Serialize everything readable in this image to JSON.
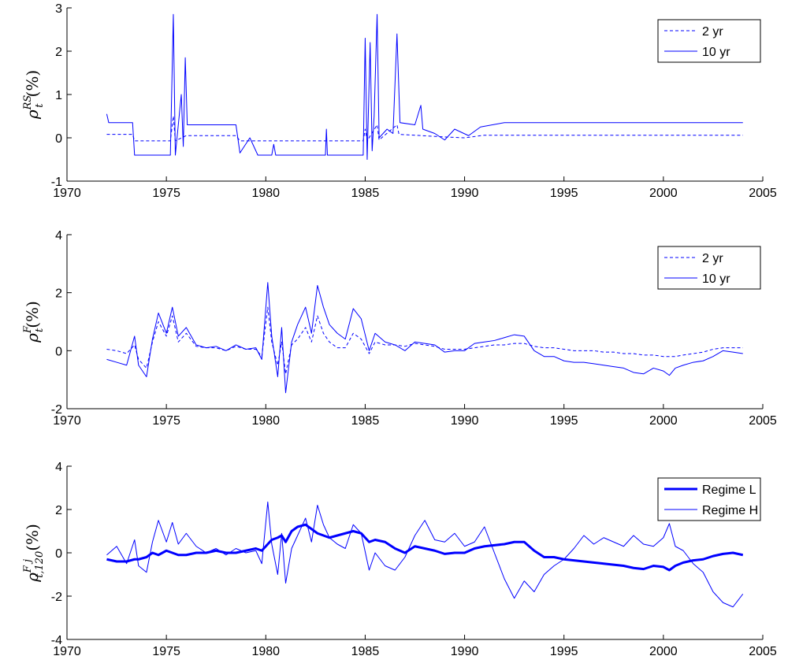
{
  "chart_data": [
    {
      "type": "line",
      "ylabel": {
        "base": "ρ",
        "sub": "t",
        "sup": "RS",
        "unit": "(%)"
      },
      "xlim": [
        1970,
        2005
      ],
      "xticks": [
        1970,
        1975,
        1980,
        1985,
        1990,
        1995,
        2000,
        2005
      ],
      "ylim": [
        -1,
        3
      ],
      "yticks": [
        -1,
        0,
        1,
        2,
        3
      ],
      "legend": "upper right",
      "series": [
        {
          "name": "2 yr",
          "color": "#0000ff",
          "style": "dashed",
          "linewidth": 1,
          "x": [
            1972,
            1973.3,
            1973.4,
            1975.2,
            1975.35,
            1975.45,
            1976,
            1978.5,
            1978.7,
            1984.9,
            1985.0,
            1985.1,
            1985.6,
            1985.7,
            1986.6,
            1986.7,
            1989,
            1990,
            1991,
            2004
          ],
          "values": [
            0.08,
            0.08,
            -0.07,
            -0.07,
            0.5,
            -0.07,
            0.05,
            0.05,
            -0.07,
            -0.07,
            0.2,
            -0.07,
            0.3,
            -0.05,
            0.3,
            0.08,
            0.02,
            0.0,
            0.06,
            0.06
          ]
        },
        {
          "name": "10 yr",
          "color": "#0000ff",
          "style": "solid",
          "linewidth": 1,
          "x": [
            1972,
            1972.1,
            1973.3,
            1973.4,
            1975.2,
            1975.35,
            1975.45,
            1975.75,
            1975.85,
            1975.95,
            1976.05,
            1976.2,
            1978.5,
            1978.7,
            1979.2,
            1979.6,
            1980.3,
            1980.4,
            1980.5,
            1983.0,
            1983.05,
            1983.1,
            1984.9,
            1985.0,
            1985.1,
            1985.25,
            1985.35,
            1985.45,
            1985.6,
            1985.7,
            1986.1,
            1986.4,
            1986.6,
            1986.75,
            1987.5,
            1987.8,
            1987.9,
            1988.5,
            1989.0,
            1989.5,
            1990.2,
            1990.8,
            1992.0,
            2004.0
          ],
          "values": [
            0.55,
            0.35,
            0.35,
            -0.4,
            -0.4,
            2.85,
            -0.4,
            1.0,
            -0.2,
            1.85,
            0.3,
            0.3,
            0.3,
            -0.35,
            0.0,
            -0.4,
            -0.4,
            -0.15,
            -0.4,
            -0.4,
            0.2,
            -0.4,
            -0.4,
            2.3,
            -0.5,
            2.2,
            -0.3,
            0.5,
            2.85,
            0.0,
            0.2,
            0.1,
            2.4,
            0.35,
            0.3,
            0.75,
            0.2,
            0.1,
            -0.05,
            0.2,
            0.05,
            0.25,
            0.35,
            0.35
          ]
        }
      ]
    },
    {
      "type": "line",
      "ylabel": {
        "base": "ρ",
        "sub": "t",
        "sup": "F",
        "unit": "(%)"
      },
      "xlim": [
        1970,
        2005
      ],
      "xticks": [
        1970,
        1975,
        1980,
        1985,
        1990,
        1995,
        2000,
        2005
      ],
      "ylim": [
        -2,
        4
      ],
      "yticks": [
        -2,
        0,
        2,
        4
      ],
      "legend": "upper right",
      "x": [
        1972,
        1972.5,
        1973,
        1973.4,
        1973.6,
        1974,
        1974.3,
        1974.6,
        1975,
        1975.3,
        1975.6,
        1976,
        1976.5,
        1977,
        1977.5,
        1978,
        1978.5,
        1979,
        1979.5,
        1979.8,
        1980.1,
        1980.3,
        1980.6,
        1980.8,
        1981,
        1981.3,
        1981.6,
        1982,
        1982.3,
        1982.6,
        1982.9,
        1983.2,
        1983.6,
        1984,
        1984.4,
        1984.8,
        1985.2,
        1985.5,
        1986,
        1986.5,
        1987,
        1987.5,
        1988,
        1988.5,
        1989,
        1989.5,
        1990,
        1990.5,
        1991,
        1991.5,
        1992,
        1992.5,
        1993,
        1993.5,
        1994,
        1994.5,
        1995,
        1995.5,
        1996,
        1996.5,
        1997,
        1997.5,
        1998,
        1998.5,
        1999,
        1999.5,
        2000,
        2000.3,
        2000.6,
        2001,
        2001.5,
        2002,
        2002.5,
        2003,
        2003.5,
        2004
      ],
      "series": [
        {
          "name": "2 yr",
          "color": "#0000ff",
          "style": "dashed",
          "linewidth": 1,
          "values": [
            0.05,
            0.0,
            -0.1,
            0.2,
            -0.3,
            -0.6,
            0.3,
            1.0,
            0.5,
            1.2,
            0.3,
            0.6,
            0.15,
            0.1,
            0.1,
            0.0,
            0.15,
            0.05,
            0.05,
            -0.2,
            1.5,
            0.3,
            -0.5,
            0.3,
            -0.8,
            0.2,
            0.4,
            0.8,
            0.3,
            1.2,
            0.6,
            0.3,
            0.1,
            0.1,
            0.6,
            0.4,
            -0.1,
            0.3,
            0.2,
            0.2,
            0.15,
            0.25,
            0.2,
            0.15,
            0.05,
            0.05,
            0.05,
            0.1,
            0.15,
            0.2,
            0.2,
            0.25,
            0.25,
            0.15,
            0.1,
            0.1,
            0.05,
            0.0,
            0.0,
            0.0,
            -0.05,
            -0.05,
            -0.1,
            -0.1,
            -0.15,
            -0.15,
            -0.2,
            -0.2,
            -0.2,
            -0.15,
            -0.1,
            -0.05,
            0.05,
            0.1,
            0.1,
            0.1
          ]
        },
        {
          "name": "10 yr",
          "color": "#0000ff",
          "style": "solid",
          "linewidth": 1,
          "values": [
            -0.3,
            -0.4,
            -0.5,
            0.5,
            -0.5,
            -0.9,
            0.4,
            1.3,
            0.6,
            1.5,
            0.5,
            0.8,
            0.2,
            0.1,
            0.15,
            0.0,
            0.2,
            0.05,
            0.1,
            -0.3,
            2.35,
            0.5,
            -0.9,
            0.8,
            -1.45,
            0.3,
            0.9,
            1.5,
            0.6,
            2.25,
            1.5,
            0.9,
            0.6,
            0.4,
            1.45,
            1.1,
            0.0,
            0.6,
            0.3,
            0.2,
            0.0,
            0.3,
            0.25,
            0.2,
            -0.05,
            0.0,
            0.0,
            0.25,
            0.3,
            0.35,
            0.45,
            0.55,
            0.5,
            0.0,
            -0.2,
            -0.2,
            -0.35,
            -0.4,
            -0.4,
            -0.45,
            -0.5,
            -0.55,
            -0.6,
            -0.75,
            -0.8,
            -0.6,
            -0.7,
            -0.85,
            -0.6,
            -0.5,
            -0.4,
            -0.35,
            -0.2,
            0.0,
            -0.05,
            -0.1
          ]
        }
      ]
    },
    {
      "type": "line",
      "ylabel": {
        "base": "ρ",
        "sub": "t,120",
        "sup": "F j",
        "unit": "(%)"
      },
      "xlim": [
        1970,
        2005
      ],
      "xticks": [
        1970,
        1975,
        1980,
        1985,
        1990,
        1995,
        2000,
        2005
      ],
      "ylim": [
        -4,
        4
      ],
      "yticks": [
        -4,
        -2,
        0,
        2,
        4
      ],
      "legend": "upper right",
      "x": [
        1972,
        1972.5,
        1973,
        1973.4,
        1973.6,
        1974,
        1974.3,
        1974.6,
        1975,
        1975.3,
        1975.6,
        1976,
        1976.5,
        1977,
        1977.5,
        1978,
        1978.5,
        1979,
        1979.5,
        1979.8,
        1980.1,
        1980.3,
        1980.6,
        1980.8,
        1981,
        1981.3,
        1981.6,
        1982,
        1982.3,
        1982.6,
        1982.9,
        1983.2,
        1983.6,
        1984,
        1984.4,
        1984.8,
        1985.2,
        1985.5,
        1986,
        1986.5,
        1987,
        1987.5,
        1988,
        1988.5,
        1989,
        1989.5,
        1990,
        1990.5,
        1991,
        1991.5,
        1992,
        1992.5,
        1993,
        1993.5,
        1994,
        1994.5,
        1995,
        1995.5,
        1996,
        1996.5,
        1997,
        1997.5,
        1998,
        1998.5,
        1999,
        1999.5,
        2000,
        2000.3,
        2000.6,
        2001,
        2001.5,
        2002,
        2002.5,
        2003,
        2003.5,
        2004
      ],
      "series": [
        {
          "name": "Regime L",
          "color": "#0000ff",
          "style": "solid",
          "linewidth": 3,
          "values": [
            -0.3,
            -0.4,
            -0.4,
            -0.3,
            -0.3,
            -0.2,
            0.0,
            -0.1,
            0.1,
            0.0,
            -0.1,
            -0.1,
            0.0,
            0.0,
            0.1,
            0.0,
            0.0,
            0.1,
            0.2,
            0.1,
            0.4,
            0.6,
            0.7,
            0.8,
            0.5,
            1.0,
            1.2,
            1.3,
            1.1,
            0.9,
            0.8,
            0.7,
            0.8,
            0.9,
            1.0,
            0.9,
            0.5,
            0.6,
            0.5,
            0.2,
            0.0,
            0.3,
            0.2,
            0.1,
            -0.05,
            0.0,
            0.0,
            0.2,
            0.3,
            0.35,
            0.4,
            0.5,
            0.5,
            0.1,
            -0.2,
            -0.2,
            -0.3,
            -0.35,
            -0.4,
            -0.45,
            -0.5,
            -0.55,
            -0.6,
            -0.7,
            -0.75,
            -0.6,
            -0.65,
            -0.8,
            -0.6,
            -0.45,
            -0.35,
            -0.3,
            -0.15,
            -0.05,
            0.0,
            -0.1
          ]
        },
        {
          "name": "Regime H",
          "color": "#0000ff",
          "style": "solid",
          "linewidth": 1,
          "values": [
            -0.1,
            0.3,
            -0.5,
            0.6,
            -0.6,
            -0.9,
            0.5,
            1.5,
            0.5,
            1.4,
            0.4,
            0.9,
            0.3,
            0.0,
            0.2,
            -0.1,
            0.2,
            0.0,
            0.1,
            -0.5,
            2.35,
            0.4,
            -1.0,
            0.9,
            -1.4,
            0.2,
            0.8,
            1.6,
            0.5,
            2.2,
            1.3,
            0.7,
            0.4,
            0.2,
            1.3,
            0.9,
            -0.8,
            0.0,
            -0.6,
            -0.8,
            -0.2,
            0.8,
            1.5,
            0.6,
            0.5,
            0.9,
            0.3,
            0.5,
            1.2,
            0.0,
            -1.2,
            -2.1,
            -1.3,
            -1.8,
            -1.0,
            -0.6,
            -0.3,
            0.2,
            0.8,
            0.4,
            0.7,
            0.5,
            0.3,
            0.8,
            0.4,
            0.3,
            0.7,
            1.35,
            0.3,
            0.1,
            -0.5,
            -0.9,
            -1.8,
            -2.3,
            -2.5,
            -1.9
          ]
        }
      ]
    }
  ]
}
